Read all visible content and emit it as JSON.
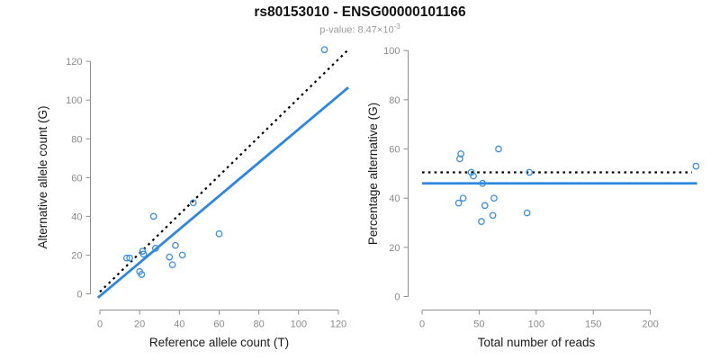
{
  "header": {
    "title": "rs80153010 - ENSG00000101166",
    "subtitle_prefix": "p-value: 8.47×10",
    "subtitle_exponent": "-3"
  },
  "colors": {
    "accent_blue": "#2E86DE",
    "point_blue": "#3B8EDE",
    "reference_black": "#000000",
    "axis_gray": "#8E8E8E",
    "tick_label_gray": "#8A8A8A",
    "subtitle_gray": "#9B9B9B",
    "background": "#FFFFFF"
  },
  "chart_data": [
    {
      "type": "scatter",
      "title": "",
      "xlabel": "Reference allele count (T)",
      "ylabel": "Alternative allele count (G)",
      "xlim": [
        0,
        126
      ],
      "ylim": [
        0,
        127
      ],
      "xticks": [
        0,
        20,
        40,
        60,
        80,
        100,
        120
      ],
      "yticks": [
        0,
        20,
        40,
        60,
        80,
        100,
        120
      ],
      "grid": false,
      "legend": "none",
      "points": [
        [
          113,
          126
        ],
        [
          47,
          47
        ],
        [
          27,
          40
        ],
        [
          60,
          31
        ],
        [
          38,
          25
        ],
        [
          35,
          19
        ],
        [
          41.5,
          20
        ],
        [
          36.5,
          15
        ],
        [
          13.5,
          18.5
        ],
        [
          15,
          18.5
        ],
        [
          21.5,
          22
        ],
        [
          22,
          20.5
        ],
        [
          28,
          23.5
        ],
        [
          20,
          11.5
        ],
        [
          21,
          10
        ]
      ],
      "lines": [
        {
          "name": "identity-dotted-line",
          "style": "dotted",
          "color": "#000000",
          "from": [
            0,
            1
          ],
          "to": [
            124.5,
            125.5
          ]
        },
        {
          "name": "regression-line",
          "style": "solid",
          "color": "#2E86DE",
          "from": [
            -1,
            -2
          ],
          "to": [
            125,
            106.5
          ]
        }
      ]
    },
    {
      "type": "scatter",
      "title": "",
      "xlabel": "Total number of reads",
      "ylabel": "Percentage alternative (G)",
      "xlim": [
        0,
        243
      ],
      "ylim": [
        0,
        100
      ],
      "xticks": [
        0,
        50,
        100,
        150,
        200
      ],
      "yticks": [
        0,
        20,
        40,
        60,
        80,
        100
      ],
      "grid": false,
      "legend": "none",
      "points": [
        [
          34,
          58
        ],
        [
          33,
          56
        ],
        [
          67,
          60
        ],
        [
          43,
          50.5
        ],
        [
          45,
          49
        ],
        [
          53,
          46
        ],
        [
          94,
          50.5
        ],
        [
          240,
          53
        ],
        [
          36,
          40
        ],
        [
          32,
          38
        ],
        [
          63,
          40
        ],
        [
          55,
          37
        ],
        [
          62,
          33
        ],
        [
          92,
          34
        ],
        [
          52,
          30.5
        ]
      ],
      "lines": [
        {
          "name": "expected-percentage-dotted-line",
          "style": "dotted",
          "color": "#000000",
          "from": [
            0,
            50.5
          ],
          "to": [
            236.5,
            50.5
          ]
        },
        {
          "name": "fitted-percentage-line",
          "style": "solid",
          "color": "#2E86DE",
          "from": [
            0,
            46
          ],
          "to": [
            241,
            46
          ]
        }
      ]
    }
  ]
}
